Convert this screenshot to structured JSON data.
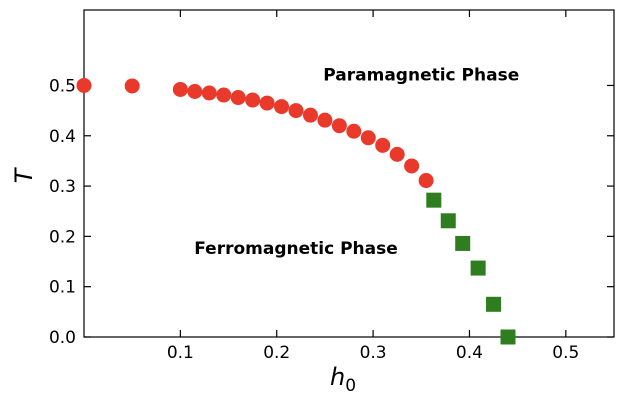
{
  "chart_data": {
    "type": "scatter",
    "title": "",
    "xlabel": "h",
    "xlabel_sub": "0",
    "ylabel": "T",
    "xlim": [
      0.0,
      0.55
    ],
    "ylim": [
      0.0,
      0.65
    ],
    "xticks": [
      0.1,
      0.2,
      0.3,
      0.4,
      0.5
    ],
    "yticks": [
      0.0,
      0.1,
      0.2,
      0.3,
      0.4,
      0.5
    ],
    "xtick_labels": [
      "0.1",
      "0.2",
      "0.3",
      "0.4",
      "0.5"
    ],
    "ytick_labels": [
      "0.0",
      "0.1",
      "0.2",
      "0.3",
      "0.4",
      "0.5"
    ],
    "grid": false,
    "annotations": [
      {
        "text": "Paramagnetic Phase",
        "x": 0.35,
        "y": 0.51
      },
      {
        "text": "Ferromagnetic Phase",
        "x": 0.22,
        "y": 0.165
      }
    ],
    "series": [
      {
        "marker": "circle",
        "color": "#e8392b",
        "x": [
          0.0,
          0.05,
          0.1,
          0.115,
          0.13,
          0.145,
          0.16,
          0.175,
          0.19,
          0.205,
          0.22,
          0.235,
          0.25,
          0.265,
          0.28,
          0.295,
          0.31,
          0.325,
          0.34,
          0.355
        ],
        "y": [
          0.5,
          0.499,
          0.492,
          0.488,
          0.485,
          0.481,
          0.476,
          0.471,
          0.465,
          0.458,
          0.45,
          0.441,
          0.431,
          0.42,
          0.409,
          0.396,
          0.381,
          0.363,
          0.34,
          0.311
        ]
      },
      {
        "marker": "square",
        "color": "#2e7d1e",
        "x": [
          0.363,
          0.378,
          0.393,
          0.409,
          0.425,
          0.44
        ],
        "y": [
          0.272,
          0.231,
          0.186,
          0.137,
          0.065,
          0.0
        ]
      }
    ]
  }
}
